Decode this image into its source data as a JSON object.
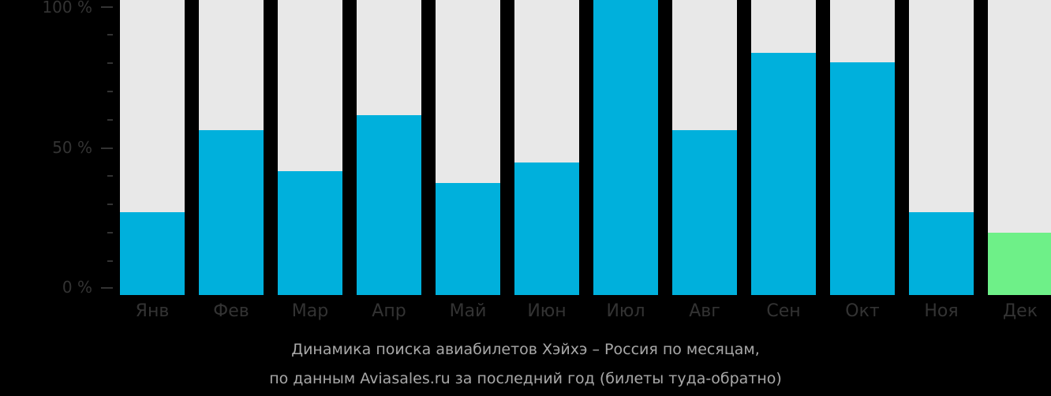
{
  "chart_data": {
    "type": "bar",
    "title": "Динамика поиска авиабилетов Хэйхэ – Россия по месяцам, по данным Aviasales.ru за последний год (билеты туда-обратно)",
    "xlabel": "",
    "ylabel": "",
    "ylim": [
      0,
      100
    ],
    "yticks": [
      "0 %",
      "50 %",
      "100 %"
    ],
    "grid": false,
    "legend": null,
    "categories": [
      "Янв",
      "Фев",
      "Мар",
      "Апр",
      "Май",
      "Июн",
      "Июл",
      "Авг",
      "Сен",
      "Окт",
      "Ноя",
      "Дек"
    ],
    "values": [
      28,
      56,
      42,
      61,
      38,
      45,
      100,
      56,
      82,
      79,
      28,
      21
    ],
    "highlighted_category": "Дек",
    "colors": {
      "bar": "#00b0dc",
      "highlight": "#6ef088",
      "background_bar": "#e8e8e8"
    }
  },
  "axis": {
    "y_labels": {
      "top": "100 %",
      "mid": "50 %",
      "bottom": "0 %"
    }
  },
  "months": [
    {
      "label": "Янв",
      "value": 28
    },
    {
      "label": "Фев",
      "value": 56
    },
    {
      "label": "Мар",
      "value": 42
    },
    {
      "label": "Апр",
      "value": 61
    },
    {
      "label": "Май",
      "value": 38
    },
    {
      "label": "Июн",
      "value": 45
    },
    {
      "label": "Июл",
      "value": 100
    },
    {
      "label": "Авг",
      "value": 56
    },
    {
      "label": "Сен",
      "value": 82
    },
    {
      "label": "Окт",
      "value": 79
    },
    {
      "label": "Ноя",
      "value": 28
    },
    {
      "label": "Дек",
      "value": 21
    }
  ],
  "caption": {
    "line1": "Динамика поиска авиабилетов Хэйхэ – Россия по месяцам,",
    "line2": "по данным Aviasales.ru за последний год (билеты туда-обратно)"
  }
}
